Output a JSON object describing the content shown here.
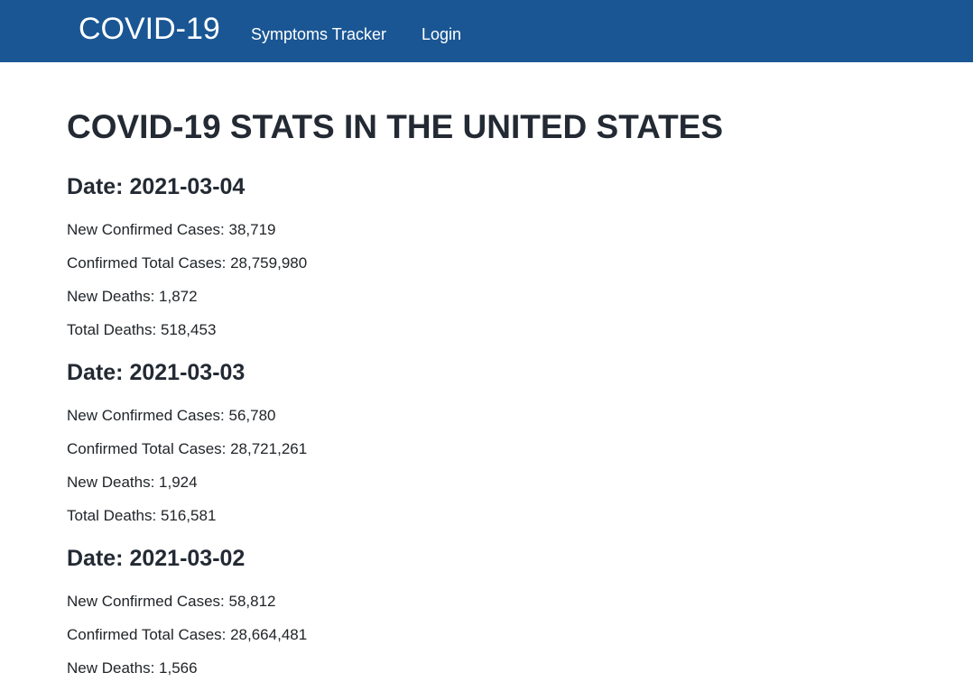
{
  "navbar": {
    "brand": "COVID-19",
    "links": [
      {
        "label": "Symptoms Tracker"
      },
      {
        "label": "Login"
      }
    ]
  },
  "page": {
    "title": "COVID-19 STATS IN THE UNITED STATES"
  },
  "days": [
    {
      "date_label": "Date: 2021-03-04",
      "new_cases": "New Confirmed Cases: 38,719",
      "total_cases": "Confirmed Total Cases: 28,759,980",
      "new_deaths": "New Deaths: 1,872",
      "total_deaths": "Total Deaths: 518,453"
    },
    {
      "date_label": "Date: 2021-03-03",
      "new_cases": "New Confirmed Cases: 56,780",
      "total_cases": "Confirmed Total Cases: 28,721,261",
      "new_deaths": "New Deaths: 1,924",
      "total_deaths": "Total Deaths: 516,581"
    },
    {
      "date_label": "Date: 2021-03-02",
      "new_cases": "New Confirmed Cases: 58,812",
      "total_cases": "Confirmed Total Cases: 28,664,481",
      "new_deaths": "New Deaths: 1,566"
    }
  ]
}
